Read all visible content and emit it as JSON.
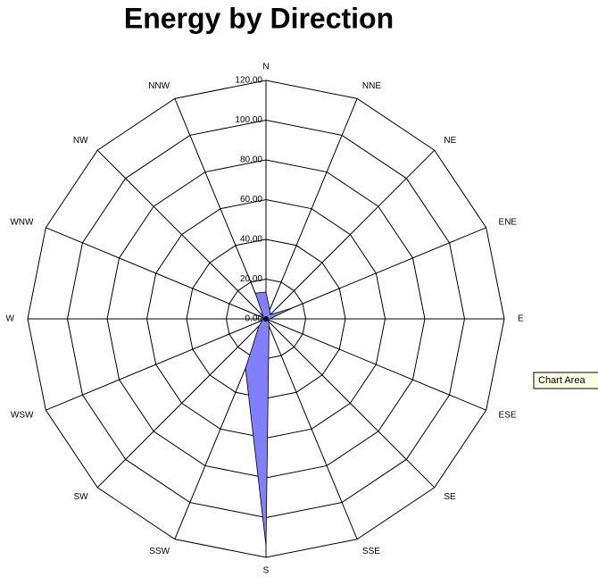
{
  "chart_data": {
    "type": "radar",
    "title": "Energy by Direction",
    "categories": [
      "N",
      "NNE",
      "NE",
      "ENE",
      "E",
      "ESE",
      "SE",
      "SSE",
      "S",
      "SSW",
      "SW",
      "WSW",
      "W",
      "WNW",
      "NW",
      "NNW"
    ],
    "series": [
      {
        "name": "Energy",
        "color": "#8080ff",
        "values": [
          13.5,
          5,
          3,
          14,
          2,
          1,
          2,
          4,
          114,
          27,
          5,
          2,
          1,
          2,
          2,
          14
        ]
      }
    ],
    "ylim": [
      0,
      120
    ],
    "yticks": [
      {
        "value": 0,
        "label": "0.00"
      },
      {
        "value": 20,
        "label": "20.00"
      },
      {
        "value": 40,
        "label": "40.00"
      },
      {
        "value": 60,
        "label": "60.00"
      },
      {
        "value": 80,
        "label": "80.00"
      },
      {
        "value": 100,
        "label": "100.00"
      },
      {
        "value": 120,
        "label": "120.00"
      }
    ],
    "tooltip": "Chart Area"
  }
}
